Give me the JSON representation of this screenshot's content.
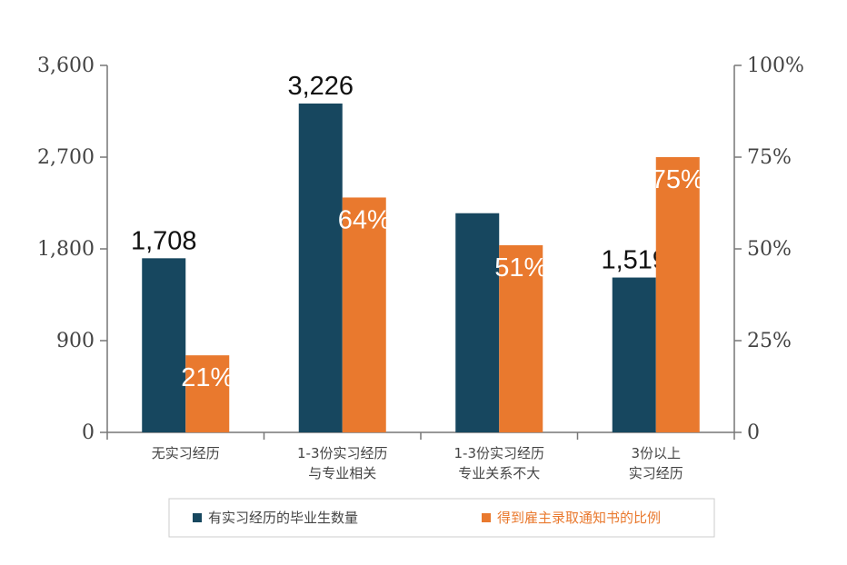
{
  "chart_data": {
    "type": "bar",
    "categories": [
      [
        "无实习经历"
      ],
      [
        "1-3份实习经历",
        "与专业相关"
      ],
      [
        "1-3份实习经历",
        "专业关系不大"
      ],
      [
        "3份以上",
        "实习经历"
      ]
    ],
    "series": [
      {
        "name": "有实习经历的毕业生数量",
        "axis": "left",
        "values": [
          1708,
          3226,
          2150,
          1519
        ],
        "labels": [
          "1,708",
          "3,226",
          "",
          "1,519"
        ],
        "color": "#17475f"
      },
      {
        "name": "得到雇主录取通知书的比例",
        "axis": "right",
        "values": [
          21,
          64,
          51,
          75
        ],
        "labels": [
          "21%",
          "64%",
          "51%",
          "75%"
        ],
        "color": "#e9792e"
      }
    ],
    "left_axis": {
      "ylim": [
        0,
        3600
      ],
      "ticks": [
        0,
        900,
        1800,
        2700,
        3600
      ],
      "tick_labels": [
        "0",
        "900",
        "1,800",
        "2,700",
        "3,600"
      ]
    },
    "right_axis": {
      "ylim": [
        0,
        100
      ],
      "ticks": [
        0,
        25,
        50,
        75,
        100
      ],
      "tick_labels": [
        "0",
        "25%",
        "50%",
        "75%",
        "100%"
      ]
    },
    "grid": false,
    "legend_position": "bottom"
  },
  "colors": {
    "axis": "#777777",
    "text": "#444444",
    "value_label_dark": "#111111",
    "value_label_light": "#ffffff",
    "legend_border": "#cccccc"
  }
}
